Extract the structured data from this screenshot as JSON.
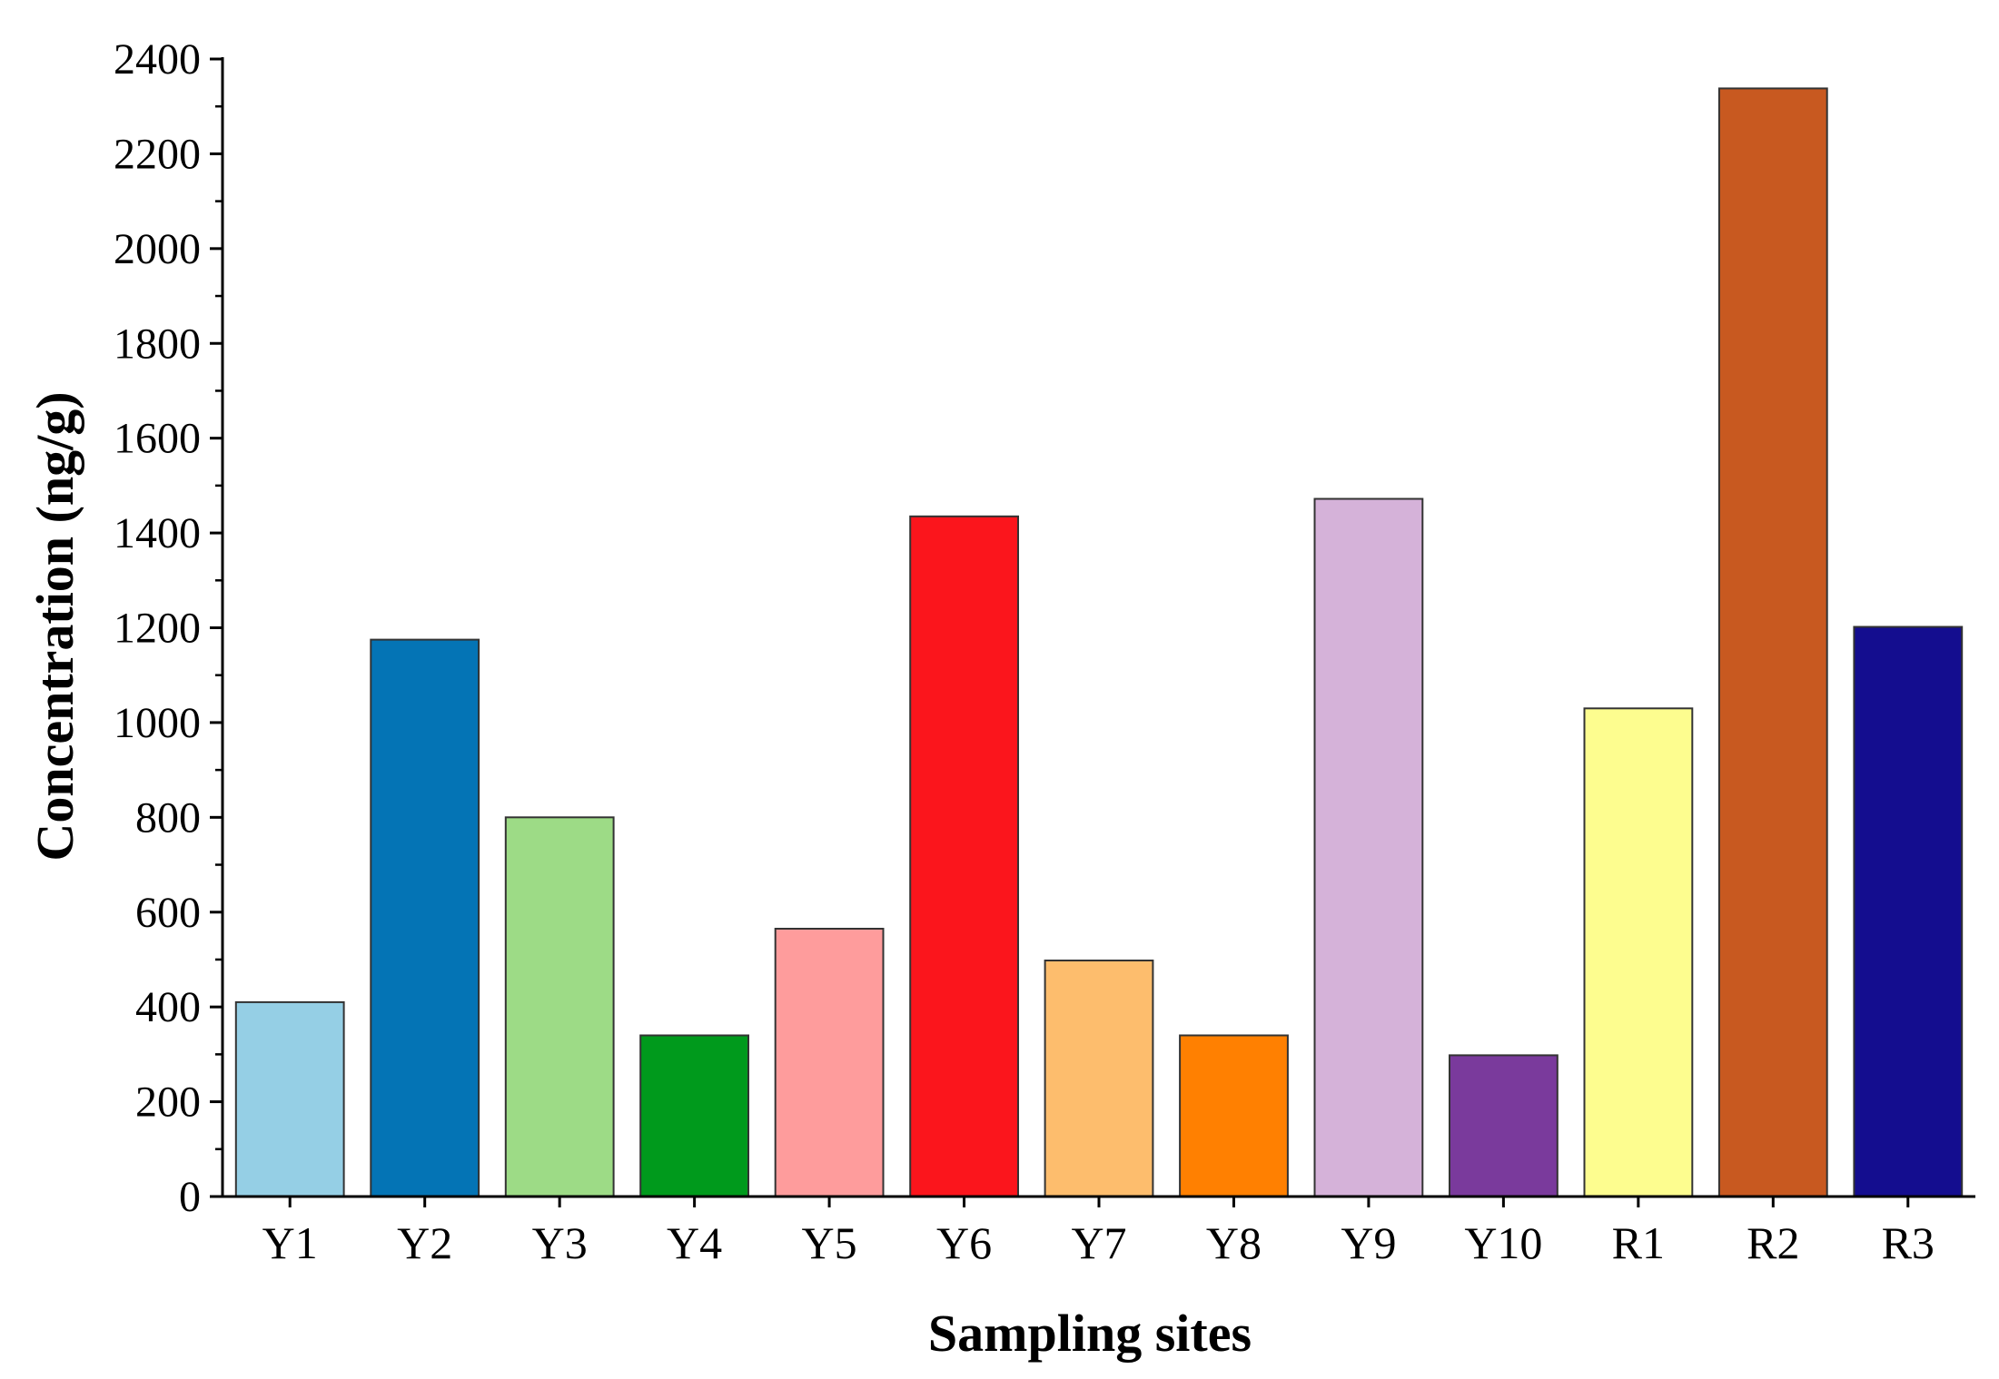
{
  "chart_data": {
    "type": "bar",
    "title": "",
    "xlabel": "Sampling sites",
    "ylabel": "Concentration (ng/g)",
    "categories": [
      "Y1",
      "Y2",
      "Y3",
      "Y4",
      "Y5",
      "Y6",
      "Y7",
      "Y8",
      "Y9",
      "Y10",
      "R1",
      "R2",
      "R3"
    ],
    "values": [
      410,
      1175,
      800,
      340,
      565,
      1435,
      498,
      340,
      1472,
      298,
      1030,
      2338,
      1202
    ],
    "colors": [
      "#95cfe5",
      "#0474b5",
      "#9ddb86",
      "#009a1c",
      "#fe9c9c",
      "#fb151c",
      "#fdbd6d",
      "#ff8001",
      "#d5b2d9",
      "#7a3a9c",
      "#fdfd8f",
      "#c85920",
      "#140d8f"
    ],
    "ylim": [
      0,
      2400
    ],
    "yticks": [
      0,
      200,
      400,
      600,
      800,
      1000,
      1200,
      1400,
      1600,
      1800,
      2000,
      2200,
      2400
    ],
    "grid": false,
    "legend": "none"
  }
}
